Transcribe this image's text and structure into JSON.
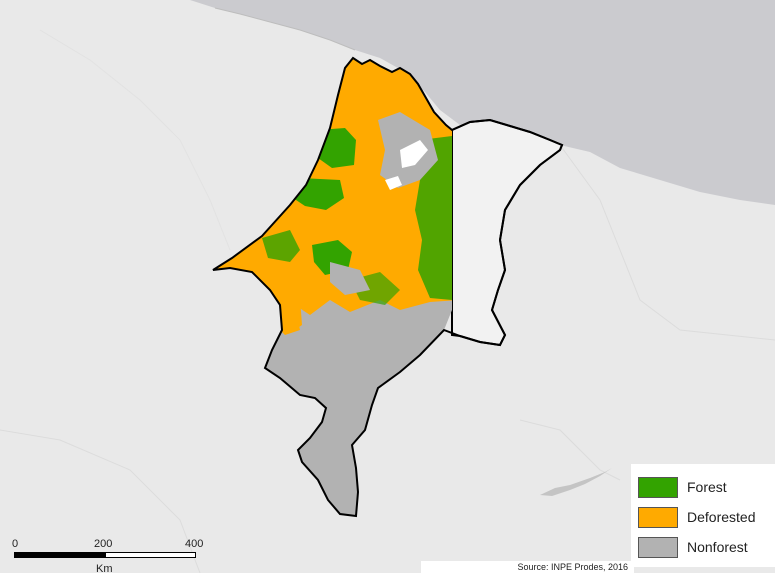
{
  "legend": {
    "items": [
      {
        "label": "Forest",
        "color": "#33a300"
      },
      {
        "label": "Deforested",
        "color": "#ffaa00"
      },
      {
        "label": "Nonforest",
        "color": "#b2b2b2"
      }
    ]
  },
  "scale": {
    "ticks": [
      "0",
      "200",
      "400"
    ],
    "unit": "Km"
  },
  "source": "Source: INPE Prodes, 2016",
  "colors": {
    "background_land": "#e9e9e9",
    "ocean": "#cbcbcf",
    "state_outline": "#000000",
    "neighbor_state_fill": "#f2f2f2",
    "forest": "#33a300",
    "deforested": "#ffaa00",
    "nonforest": "#b2b2b2"
  }
}
